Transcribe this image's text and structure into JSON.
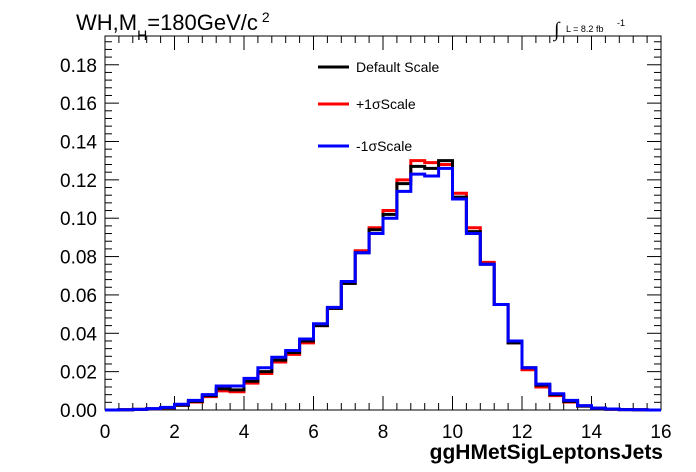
{
  "chart_data": {
    "type": "line",
    "title_parts": {
      "prefix": "WH,M",
      "subscript": "H",
      "suffix": "=180GeV/c",
      "superscript": "2"
    },
    "xlabel": "ggHMetSigLeptonsJets",
    "ylabel": "",
    "xlim": [
      0,
      16
    ],
    "ylim": [
      0,
      0.195
    ],
    "x_ticks": [
      0,
      2,
      4,
      6,
      8,
      10,
      12,
      14,
      16
    ],
    "x_tick_labels": [
      "0",
      "2",
      "4",
      "6",
      "8",
      "10",
      "12",
      "14",
      "16"
    ],
    "y_ticks": [
      0,
      0.02,
      0.04,
      0.06,
      0.08,
      0.1,
      0.12,
      0.14,
      0.16,
      0.18
    ],
    "y_tick_labels": [
      "0.00",
      "0.02",
      "0.04",
      "0.06",
      "0.08",
      "0.10",
      "0.12",
      "0.14",
      "0.16",
      "0.18"
    ],
    "lumi_label": "L = 8.2 fb",
    "lumi_superscript": "-1",
    "legend_position": "top-center",
    "bin_edges": [
      0,
      0.4,
      0.8,
      1.2,
      1.6,
      2.0,
      2.4,
      2.8,
      3.2,
      3.6,
      4.0,
      4.4,
      4.8,
      5.2,
      5.6,
      6.0,
      6.4,
      6.8,
      7.2,
      7.6,
      8.0,
      8.4,
      8.8,
      9.2,
      9.6,
      10.0,
      10.4,
      10.8,
      11.2,
      11.6,
      12.0,
      12.4,
      12.8,
      13.2,
      13.6,
      14.0,
      14.4,
      14.8,
      15.2,
      15.6,
      16.0
    ],
    "series": [
      {
        "name": "Default Scale",
        "color": "#000000",
        "values": [
          0.0,
          0.0001,
          0.0003,
          0.0006,
          0.0012,
          0.0025,
          0.0045,
          0.0075,
          0.011,
          0.0105,
          0.015,
          0.02,
          0.026,
          0.03,
          0.036,
          0.044,
          0.053,
          0.066,
          0.082,
          0.094,
          0.102,
          0.118,
          0.127,
          0.126,
          0.13,
          0.111,
          0.093,
          0.076,
          0.055,
          0.035,
          0.022,
          0.013,
          0.008,
          0.0045,
          0.002,
          0.0009,
          0.0004,
          0.0002,
          0.0001,
          0.0,
          0.0
        ]
      },
      {
        "name": "+1σScale",
        "color": "#ff0000",
        "values": [
          0.0,
          0.0001,
          0.0003,
          0.0006,
          0.0012,
          0.0025,
          0.0042,
          0.007,
          0.01,
          0.0095,
          0.014,
          0.019,
          0.025,
          0.029,
          0.035,
          0.044,
          0.053,
          0.066,
          0.083,
          0.095,
          0.104,
          0.12,
          0.13,
          0.129,
          0.128,
          0.113,
          0.095,
          0.077,
          0.055,
          0.035,
          0.021,
          0.012,
          0.0075,
          0.0042,
          0.002,
          0.0009,
          0.0004,
          0.0002,
          0.0001,
          0.0,
          0.0
        ]
      },
      {
        "name": "-1σScale",
        "color": "#0000ff",
        "values": [
          0.0,
          0.0001,
          0.0003,
          0.0007,
          0.0014,
          0.003,
          0.005,
          0.008,
          0.0125,
          0.0125,
          0.0165,
          0.022,
          0.0275,
          0.031,
          0.037,
          0.045,
          0.0535,
          0.067,
          0.082,
          0.092,
          0.1,
          0.114,
          0.123,
          0.122,
          0.126,
          0.11,
          0.092,
          0.076,
          0.055,
          0.036,
          0.022,
          0.0135,
          0.0085,
          0.005,
          0.0023,
          0.001,
          0.0005,
          0.0002,
          0.0001,
          0.0,
          0.0
        ]
      }
    ]
  }
}
